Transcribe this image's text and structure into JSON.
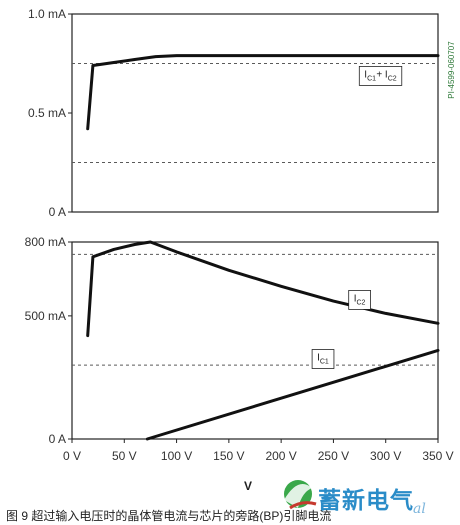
{
  "chart_data": [
    {
      "type": "line",
      "id": "top",
      "x_ticks": [
        "0 V",
        "50 V",
        "100 V",
        "150 V",
        "200 V",
        "250 V",
        "300 V",
        "350 V"
      ],
      "y_ticks": [
        {
          "v": 1.0,
          "label": "1.0 mA"
        },
        {
          "v": 0.5,
          "label": "0.5 mA"
        },
        {
          "v": 0.0,
          "label": "0 A"
        }
      ],
      "xlim": [
        0,
        350
      ],
      "ylim": [
        0,
        1.0
      ],
      "dashed_levels": [
        0.75,
        0.25
      ],
      "series": [
        {
          "name": "IC1 + IC2",
          "x": [
            15,
            20,
            40,
            60,
            80,
            100,
            150,
            200,
            250,
            300,
            350
          ],
          "y": [
            0.42,
            0.74,
            0.755,
            0.77,
            0.785,
            0.79,
            0.79,
            0.79,
            0.79,
            0.79,
            0.79
          ]
        }
      ],
      "annotations": [
        {
          "text_main": "I",
          "sub1": "C1",
          "plus": " + I",
          "sub2": "C2",
          "at_x": 295,
          "at_y": 0.7
        }
      ],
      "side_label": "PI-4599-060707"
    },
    {
      "type": "line",
      "id": "bottom",
      "x_ticks": [
        "0 V",
        "50 V",
        "100 V",
        "150 V",
        "200 V",
        "250 V",
        "300 V",
        "350 V"
      ],
      "y_ticks": [
        {
          "v": 800,
          "label": "800 mA"
        },
        {
          "v": 500,
          "label": "500 mA"
        },
        {
          "v": 0,
          "label": "0 A"
        }
      ],
      "xlim": [
        0,
        350
      ],
      "ylim": [
        0,
        800
      ],
      "dashed_levels": [
        750,
        300
      ],
      "series": [
        {
          "name": "IC2",
          "x": [
            15,
            20,
            40,
            60,
            75,
            100,
            150,
            200,
            250,
            300,
            350
          ],
          "y": [
            420,
            740,
            770,
            790,
            800,
            760,
            685,
            620,
            560,
            510,
            470
          ]
        },
        {
          "name": "IC1",
          "x": [
            72,
            350
          ],
          "y": [
            0,
            360
          ]
        }
      ],
      "annotations": [
        {
          "text_main": "I",
          "sub1": "C2",
          "at_x": 275,
          "at_y": 575
        },
        {
          "text_main": "I",
          "sub1": "C1",
          "at_x": 240,
          "at_y": 335
        }
      ]
    }
  ],
  "x_unit_label": "V",
  "caption": "图 9  超过输入电压时的晶体管电流与芯片的旁路(BP)引脚电流",
  "watermark": {
    "text": "蓄新电气",
    "tail": "al",
    "logo": "leaf-logo-icon"
  },
  "colors": {
    "line": "#111111",
    "dash": "#5a5a5a",
    "axis": "#222222",
    "green": "#2f7a3a",
    "brand_blue": "#2a8cc8"
  }
}
